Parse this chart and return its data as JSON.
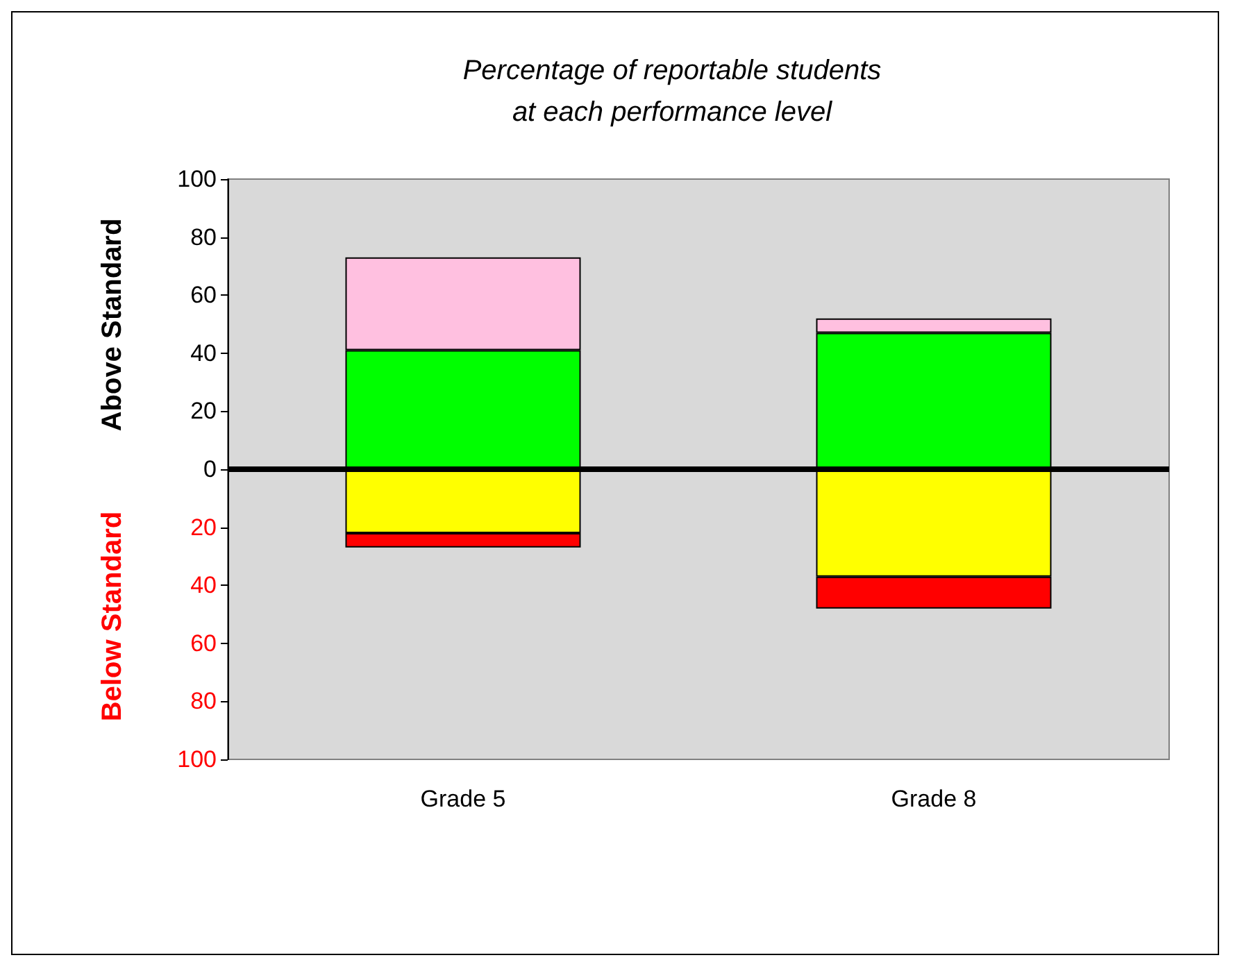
{
  "chart_data": {
    "type": "bar",
    "title": "Percentage of reportable students\nat each performance level",
    "ylabel": "Above Standard",
    "annotations": [
      "Below Standard"
    ],
    "categories": [
      "Grade 5",
      "Grade 8"
    ],
    "stacked": true,
    "series": [
      {
        "color": "#00ff00",
        "values": [
          41,
          47
        ]
      },
      {
        "color": "#ffc0e0",
        "values": [
          32,
          5
        ]
      },
      {
        "color": "#ffff00",
        "values": [
          -22,
          -37
        ]
      },
      {
        "color": "#ff0000",
        "values": [
          -5,
          -11
        ]
      }
    ],
    "ylim": [
      -100,
      100
    ],
    "yticks": [
      {
        "value": -100,
        "label": "100"
      },
      {
        "value": -80,
        "label": "80"
      },
      {
        "value": -60,
        "label": "60"
      },
      {
        "value": -40,
        "label": "40"
      },
      {
        "value": -20,
        "label": "20"
      },
      0,
      20,
      40,
      60,
      80,
      100
    ],
    "ref_lines": [
      {
        "axis": "y",
        "value": 0,
        "color": "#000000"
      }
    ],
    "grid": false
  }
}
